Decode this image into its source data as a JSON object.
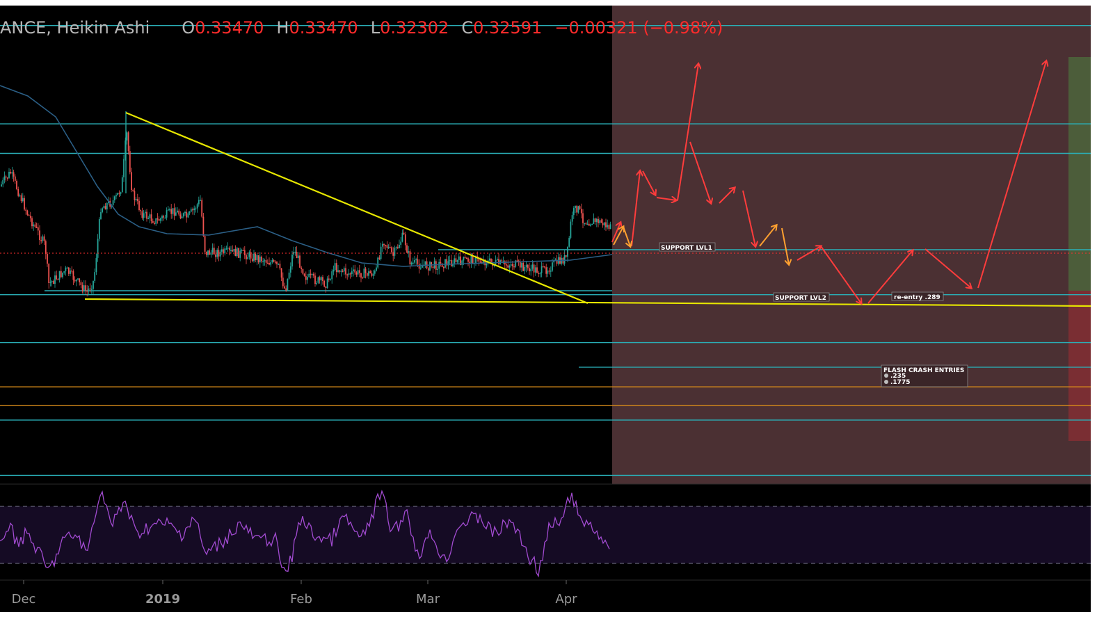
{
  "chart_data": {
    "type": "candlestick",
    "style": "Heikin Ashi",
    "symbol_label": "ANCE, Heikin Ashi",
    "ohlc": {
      "open_key": "O",
      "open": "0.33470",
      "high_key": "H",
      "high": "0.33470",
      "low_key": "L",
      "low": "0.32302",
      "close_key": "C",
      "close": "0.32591",
      "change": "−0.00321 (−0.98%)"
    },
    "x_ticks": [
      "Dec",
      "2019",
      "Feb",
      "Mar",
      "Apr"
    ],
    "horizontal_levels_approx_price": [
      0.418,
      0.378,
      0.366,
      0.3268,
      0.3085,
      0.289,
      0.279,
      0.271,
      0.2635,
      0.2575,
      0.235,
      0.1775
    ],
    "annotations": [
      "SUPPORT LVL1",
      "SUPPORT LVL2",
      "re-entry .289",
      "FLASH CRASH ENTRIES",
      ".235",
      ".1775"
    ],
    "indicator": {
      "name": "RSI",
      "overbought": 70,
      "oversold": 30
    },
    "colors": {
      "up": "#26a69a",
      "down": "#ef5350",
      "trendline": "#e6e600",
      "level": "#2ab0b8",
      "orange_level": "#d98c1a",
      "forecast_arrow": "#ff3c3c",
      "alt_arrow": "#ffa030",
      "rsi": "#a24bd1",
      "projection_zone": "#4b3033"
    }
  }
}
